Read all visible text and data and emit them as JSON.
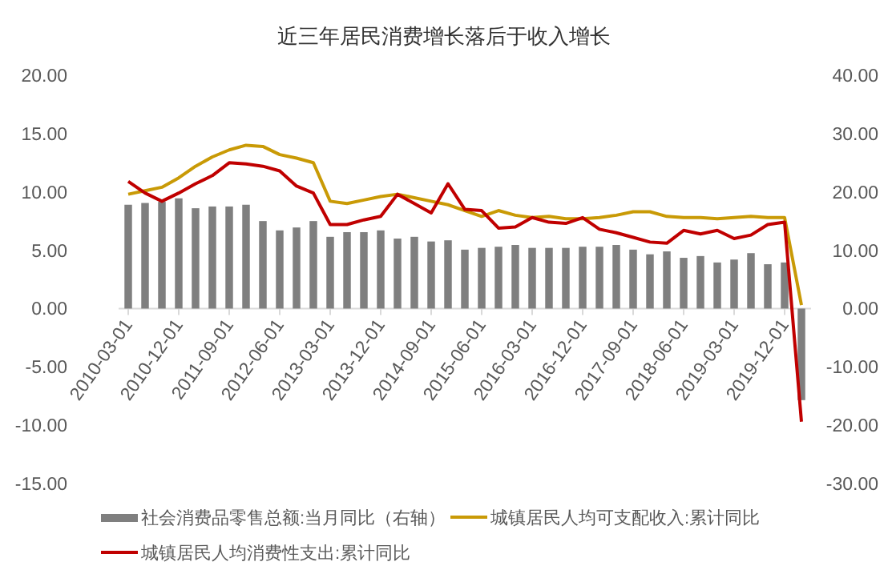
{
  "chart_data": {
    "type": "bar",
    "title": "近三年居民消费增长落后于收入增长",
    "categories": [
      "2010-03-01",
      null,
      null,
      "2010-12-01",
      null,
      null,
      "2011-09-01",
      null,
      null,
      "2012-06-01",
      null,
      null,
      "2013-03-01",
      null,
      null,
      "2013-12-01",
      null,
      null,
      "2014-09-01",
      null,
      null,
      "2015-06-01",
      null,
      null,
      "2016-03-01",
      null,
      null,
      "2016-12-01",
      null,
      null,
      "2017-09-01",
      null,
      null,
      "2018-06-01",
      null,
      null,
      "2019-03-01",
      null,
      null,
      "2019-12-01",
      null
    ],
    "series": [
      {
        "name": "社会消费品零售总额:当月同比（右轴）",
        "axis": "y2",
        "color": "#7f7f7f",
        "values": [
          17.8,
          18.1,
          18.3,
          18.9,
          17.2,
          17.5,
          17.5,
          17.8,
          15.0,
          13.4,
          13.9,
          15.0,
          12.3,
          13.1,
          13.1,
          13.4,
          12.0,
          12.3,
          11.5,
          11.7,
          10.1,
          10.4,
          10.6,
          10.9,
          10.4,
          10.4,
          10.4,
          10.6,
          10.6,
          10.9,
          10.1,
          9.3,
          9.8,
          8.7,
          9.0,
          7.9,
          8.4,
          9.5,
          7.6,
          7.9,
          -15.7
        ]
      },
      {
        "name": "城镇居民人均可支配收入:累计同比",
        "type": "line",
        "color": "#c99a06",
        "values": [
          9.8,
          10.1,
          10.4,
          11.2,
          12.2,
          13.0,
          13.6,
          14.0,
          13.9,
          13.2,
          12.9,
          12.5,
          9.2,
          9.0,
          9.3,
          9.6,
          9.8,
          9.5,
          9.2,
          8.9,
          8.4,
          7.9,
          8.4,
          8.0,
          7.8,
          7.9,
          7.7,
          7.7,
          7.8,
          8.0,
          8.3,
          8.3,
          7.9,
          7.8,
          7.8,
          7.7,
          7.8,
          7.9,
          7.8,
          7.8,
          0.3
        ]
      },
      {
        "name": "城镇居民人均消费性支出:累计同比",
        "type": "line",
        "color": "#c00000",
        "values": [
          10.9,
          9.9,
          9.2,
          9.9,
          10.7,
          11.4,
          12.5,
          12.4,
          12.2,
          11.8,
          10.5,
          9.9,
          7.2,
          7.2,
          7.6,
          7.9,
          9.8,
          9.0,
          8.2,
          10.7,
          8.5,
          8.4,
          6.9,
          7.0,
          7.8,
          7.4,
          7.3,
          7.8,
          6.8,
          6.5,
          6.1,
          5.7,
          5.6,
          6.7,
          6.4,
          6.7,
          6.0,
          6.3,
          7.2,
          7.4,
          -9.7
        ]
      }
    ],
    "ylim": [
      -15,
      20
    ],
    "yticks": [
      {
        "value": -15,
        "label": "-15.00"
      },
      {
        "value": -10,
        "label": "-10.00"
      },
      {
        "value": -5,
        "label": "-5.00"
      },
      {
        "value": 0,
        "label": "0.00"
      },
      {
        "value": 5,
        "label": "5.00"
      },
      {
        "value": 10,
        "label": "10.00"
      },
      {
        "value": 15,
        "label": "15.00"
      },
      {
        "value": 20,
        "label": "20.00"
      }
    ],
    "y2lim": [
      -30,
      40
    ],
    "y2ticks": [
      {
        "value": -30,
        "label": "-30.00"
      },
      {
        "value": -20,
        "label": "-20.00"
      },
      {
        "value": -10,
        "label": "-10.00"
      },
      {
        "value": 0,
        "label": "0.00"
      },
      {
        "value": 10,
        "label": "10.00"
      },
      {
        "value": 20,
        "label": "20.00"
      },
      {
        "value": 30,
        "label": "30.00"
      },
      {
        "value": 40,
        "label": "40.00"
      }
    ],
    "legend": "bottom"
  }
}
